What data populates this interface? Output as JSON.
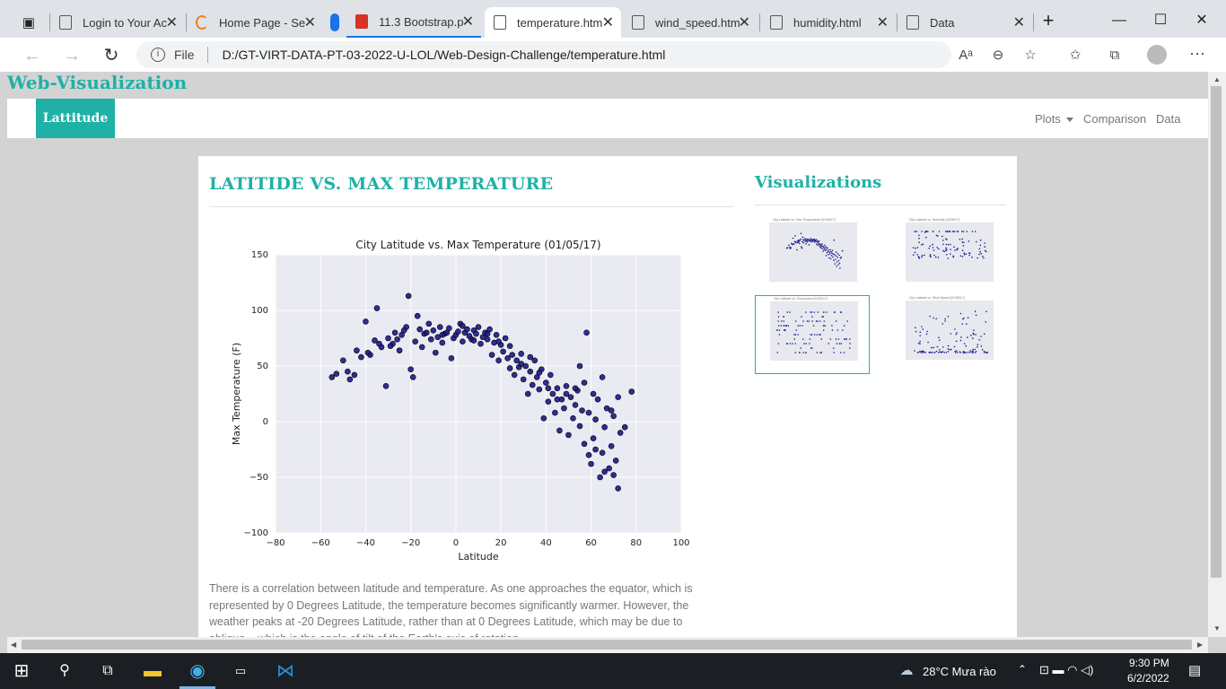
{
  "browser": {
    "tabs": [
      {
        "label": "Login to Your Ac",
        "active": false
      },
      {
        "label": "Home Page - Se",
        "active": false
      },
      {
        "label": "11.3 Bootstrap.p",
        "active": false
      },
      {
        "label": "temperature.htm",
        "active": true
      },
      {
        "label": "wind_speed.htm",
        "active": false
      },
      {
        "label": "humidity.html",
        "active": false
      },
      {
        "label": "Data",
        "active": false
      }
    ],
    "address": {
      "scheme_label": "File",
      "url": "D:/GT-VIRT-DATA-PT-03-2022-U-LOL/Web-Design-Challenge/temperature.html"
    }
  },
  "page": {
    "site_title": "Web-Visualization",
    "navbar": {
      "brand": "Lattitude",
      "links": [
        "Plots",
        "Comparison",
        "Data"
      ]
    },
    "main_heading": "LATITIDE VS. MAX TEMPERATURE",
    "side_heading": "Visualizations",
    "description": "There is a correlation between latitude and temperature. As one approaches the equator, which is represented by 0 Degrees Latitude, the temperature becomes significantly warmer. However, the weather peaks at -20 Degrees Latitude, rather than at 0 Degrees Latitude, which may be due to oblique... which is the angle of tilt of the Earth's axis of rotation.",
    "thumbnails": [
      {
        "title": "City Latitude vs. Max Temperature (01/05/17)",
        "selected": false
      },
      {
        "title": "City Latitude vs. Humidity (01/05/17)",
        "selected": false
      },
      {
        "title": "City Latitude vs. Cloudiness (01/05/17)",
        "selected": true
      },
      {
        "title": "City Latitude vs. Wind Speed (01/05/17)",
        "selected": false
      }
    ]
  },
  "chart_data": {
    "type": "scatter",
    "title": "City Latitude vs. Max Temperature (01/05/17)",
    "xlabel": "Latitude",
    "ylabel": "Max Temperature (F)",
    "xlim": [
      -80,
      100
    ],
    "ylim": [
      -100,
      150
    ],
    "xticks": [
      -80,
      -60,
      -40,
      -20,
      0,
      20,
      40,
      60,
      80,
      100
    ],
    "yticks": [
      -100,
      -50,
      0,
      50,
      100,
      150
    ],
    "grid": true,
    "point_color": "#1a1a8c",
    "series": [
      {
        "points": [
          [
            -55,
            40
          ],
          [
            -53,
            43
          ],
          [
            -50,
            55
          ],
          [
            -47,
            38
          ],
          [
            -45,
            42
          ],
          [
            -44,
            64
          ],
          [
            -42,
            58
          ],
          [
            -40,
            90
          ],
          [
            -38,
            60
          ],
          [
            -36,
            73
          ],
          [
            -35,
            102
          ],
          [
            -33,
            67
          ],
          [
            -31,
            32
          ],
          [
            -30,
            75
          ],
          [
            -28,
            70
          ],
          [
            -27,
            80
          ],
          [
            -25,
            64
          ],
          [
            -24,
            78
          ],
          [
            -22,
            85
          ],
          [
            -21,
            113
          ],
          [
            -20,
            47
          ],
          [
            -19,
            40
          ],
          [
            -18,
            72
          ],
          [
            -17,
            95
          ],
          [
            -16,
            83
          ],
          [
            -15,
            67
          ],
          [
            -14,
            79
          ],
          [
            -12,
            88
          ],
          [
            -11,
            74
          ],
          [
            -10,
            82
          ],
          [
            -9,
            62
          ],
          [
            -8,
            76
          ],
          [
            -7,
            85
          ],
          [
            -6,
            71
          ],
          [
            -5,
            79
          ],
          [
            -4,
            80
          ],
          [
            -3,
            84
          ],
          [
            -2,
            57
          ],
          [
            -1,
            75
          ],
          [
            0,
            78
          ],
          [
            1,
            81
          ],
          [
            2,
            88
          ],
          [
            3,
            72
          ],
          [
            4,
            80
          ],
          [
            5,
            83
          ],
          [
            6,
            77
          ],
          [
            7,
            74
          ],
          [
            8,
            82
          ],
          [
            9,
            79
          ],
          [
            10,
            85
          ],
          [
            11,
            70
          ],
          [
            12,
            76
          ],
          [
            13,
            80
          ],
          [
            14,
            74
          ],
          [
            15,
            83
          ],
          [
            16,
            60
          ],
          [
            17,
            71
          ],
          [
            18,
            78
          ],
          [
            19,
            55
          ],
          [
            20,
            69
          ],
          [
            21,
            63
          ],
          [
            22,
            75
          ],
          [
            23,
            57
          ],
          [
            24,
            48
          ],
          [
            25,
            60
          ],
          [
            26,
            42
          ],
          [
            27,
            55
          ],
          [
            28,
            49
          ],
          [
            29,
            61
          ],
          [
            30,
            38
          ],
          [
            31,
            50
          ],
          [
            32,
            25
          ],
          [
            33,
            45
          ],
          [
            34,
            33
          ],
          [
            35,
            55
          ],
          [
            36,
            40
          ],
          [
            37,
            29
          ],
          [
            38,
            47
          ],
          [
            39,
            3
          ],
          [
            40,
            35
          ],
          [
            41,
            18
          ],
          [
            42,
            42
          ],
          [
            43,
            25
          ],
          [
            44,
            8
          ],
          [
            45,
            30
          ],
          [
            46,
            -8
          ],
          [
            47,
            20
          ],
          [
            48,
            12
          ],
          [
            49,
            32
          ],
          [
            50,
            -12
          ],
          [
            51,
            22
          ],
          [
            52,
            3
          ],
          [
            53,
            15
          ],
          [
            54,
            28
          ],
          [
            55,
            -4
          ],
          [
            56,
            10
          ],
          [
            57,
            -20
          ],
          [
            58,
            80
          ],
          [
            59,
            8
          ],
          [
            60,
            -38
          ],
          [
            61,
            -15
          ],
          [
            62,
            2
          ],
          [
            63,
            20
          ],
          [
            64,
            -50
          ],
          [
            65,
            -28
          ],
          [
            66,
            -5
          ],
          [
            67,
            12
          ],
          [
            68,
            -42
          ],
          [
            69,
            -22
          ],
          [
            70,
            5
          ],
          [
            71,
            -35
          ],
          [
            72,
            -60
          ],
          [
            73,
            -10
          ],
          [
            75,
            -5
          ],
          [
            78,
            27
          ],
          [
            -48,
            45
          ],
          [
            -39,
            62
          ],
          [
            -34,
            70
          ],
          [
            -29,
            68
          ],
          [
            -26,
            74
          ],
          [
            -23,
            82
          ],
          [
            -13,
            80
          ],
          [
            -6,
            78
          ],
          [
            3,
            86
          ],
          [
            8,
            73
          ],
          [
            14,
            79
          ],
          [
            19,
            72
          ],
          [
            24,
            68
          ],
          [
            29,
            52
          ],
          [
            33,
            58
          ],
          [
            37,
            44
          ],
          [
            41,
            30
          ],
          [
            45,
            20
          ],
          [
            49,
            25
          ],
          [
            53,
            30
          ],
          [
            57,
            35
          ],
          [
            61,
            25
          ],
          [
            65,
            40
          ],
          [
            69,
            10
          ],
          [
            72,
            22
          ],
          [
            55,
            50
          ],
          [
            62,
            -25
          ],
          [
            66,
            -45
          ],
          [
            70,
            -48
          ],
          [
            59,
            -30
          ]
        ]
      }
    ]
  }
}
